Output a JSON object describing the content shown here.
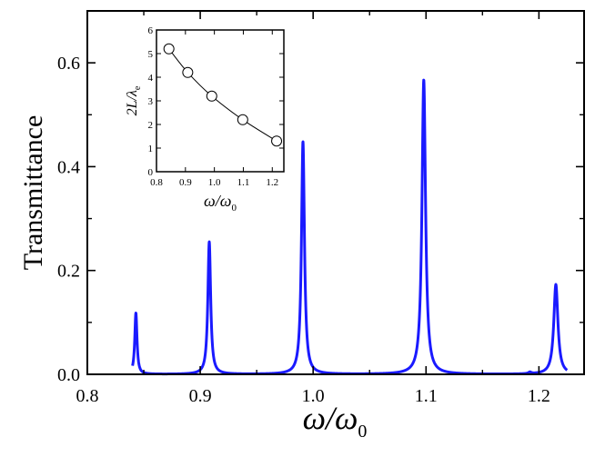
{
  "chart_data": [
    {
      "name": "main",
      "type": "line",
      "xlabel": {
        "main": "ω/ω",
        "sub": "0"
      },
      "ylabel": "Transmittance",
      "xlim": [
        0.8,
        1.24
      ],
      "ylim": [
        0,
        0.7
      ],
      "xticks": [
        0.8,
        0.9,
        1.0,
        1.1,
        1.2
      ],
      "xtick_labels": [
        "0.8",
        "0.9",
        "1.0",
        "1.1",
        "1.2"
      ],
      "yticks": [
        0.0,
        0.2,
        0.4,
        0.6
      ],
      "ytick_labels": [
        "0.0",
        "0.2",
        "0.4",
        "0.6"
      ],
      "series": [
        {
          "name": "transmittance",
          "color": "#1a1aff",
          "peaks": [
            {
              "x": 0.843,
              "height": 0.118,
              "width": 0.0012
            },
            {
              "x": 0.908,
              "height": 0.255,
              "width": 0.0015
            },
            {
              "x": 0.991,
              "height": 0.448,
              "width": 0.0016
            },
            {
              "x": 1.098,
              "height": 0.567,
              "width": 0.0019
            },
            {
              "x": 1.192,
              "height": 0.003,
              "width": 0.0015
            },
            {
              "x": 1.215,
              "height": 0.173,
              "width": 0.0022
            }
          ]
        }
      ]
    },
    {
      "name": "inset",
      "type": "line",
      "xlabel": {
        "main": "ω/ω",
        "sub": "0"
      },
      "ylabel": {
        "main": "2L/λ",
        "sub": "e"
      },
      "xlim": [
        0.8,
        1.24
      ],
      "ylim": [
        0,
        6
      ],
      "xticks": [
        0.8,
        0.9,
        1.0,
        1.1,
        1.2
      ],
      "xtick_labels": [
        "0.8",
        "0.9",
        "1.0",
        "1.1",
        "1.2"
      ],
      "yticks": [
        0,
        1,
        2,
        3,
        4,
        5,
        6
      ],
      "ytick_labels": [
        "0",
        "1",
        "2",
        "3",
        "4",
        "5",
        "6"
      ],
      "series": [
        {
          "name": "2L/lambda_e",
          "color": "#000000",
          "marker": "open-circle",
          "x": [
            0.843,
            0.908,
            0.991,
            1.098,
            1.215
          ],
          "y": [
            5.2,
            4.2,
            3.2,
            2.2,
            1.3
          ]
        }
      ]
    }
  ]
}
